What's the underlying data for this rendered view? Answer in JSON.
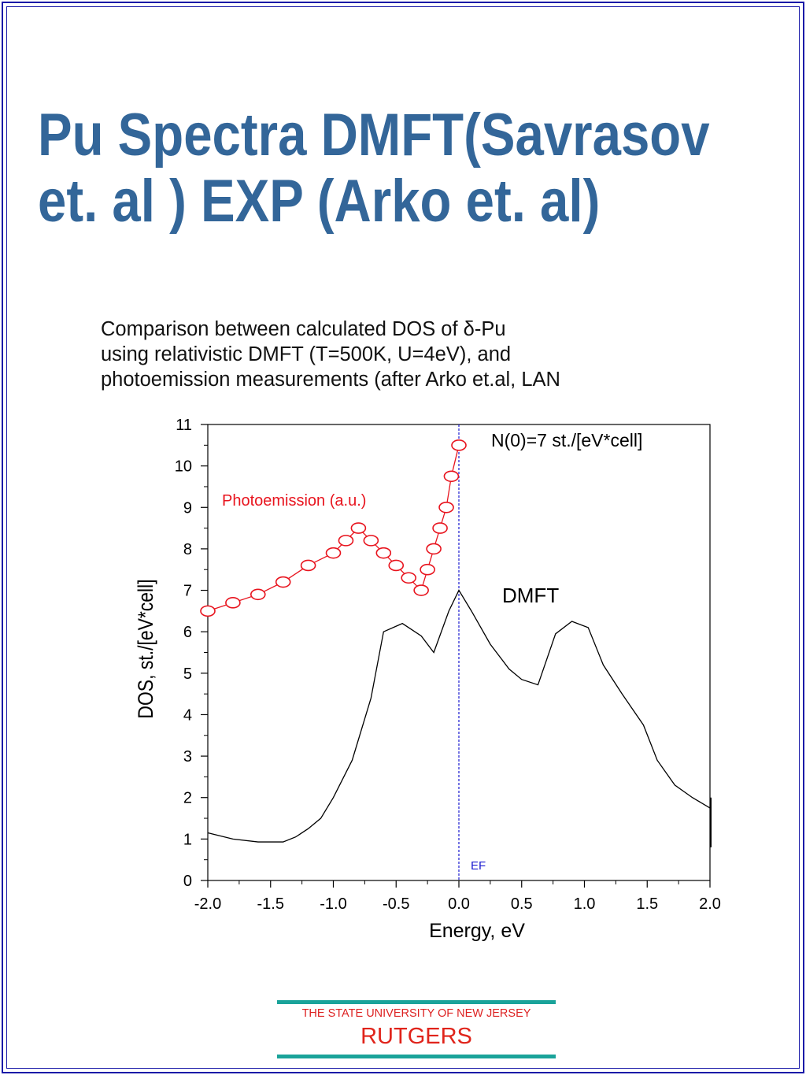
{
  "slide": {
    "title_line1": "Pu Spectra DMFT(Savrasov",
    "title_line2": "et. al ) EXP (Arko et. al)"
  },
  "caption": {
    "line1": "Comparison between calculated DOS of δ-Pu",
    "line2": "using relativistic DMFT (T=500K, U=4eV), and",
    "line3": "photoemission measurements (after Arko et.al, LAN"
  },
  "chart_data": {
    "type": "line",
    "xlabel": "Energy, eV",
    "ylabel": "DOS, st./[eV*cell]",
    "xlim": [
      -2.0,
      2.0
    ],
    "ylim": [
      0,
      11
    ],
    "xticks": [
      "-2.0",
      "-1.5",
      "-1.0",
      "-0.5",
      "0.0",
      "0.5",
      "1.0",
      "1.5",
      "2.0"
    ],
    "yticks": [
      "0",
      "1",
      "2",
      "3",
      "4",
      "5",
      "6",
      "7",
      "8",
      "9",
      "10",
      "11"
    ],
    "grid": false,
    "annotations": {
      "n0": "N(0)=7 st./[eV*cell]",
      "ef": "EF",
      "dmft": "DMFT",
      "photoemission": "Photoemission (a.u.)"
    },
    "ef_line_x": 0.0,
    "colors": {
      "dmft": "#000000",
      "photoemission": "#e8141e",
      "ef": "#1a1ad0"
    },
    "series": [
      {
        "key": "dmft",
        "marker": "none",
        "x": [
          -2.0,
          -1.8,
          -1.6,
          -1.4,
          -1.3,
          -1.2,
          -1.1,
          -1.0,
          -0.85,
          -0.7,
          -0.6,
          -0.45,
          -0.3,
          -0.2,
          -0.08,
          0.0,
          0.1,
          0.25,
          0.4,
          0.5,
          0.63,
          0.77,
          0.9,
          1.03,
          1.15,
          1.3,
          1.47,
          1.58,
          1.72,
          1.86,
          2.0
        ],
        "y": [
          1.15,
          1.0,
          0.93,
          0.93,
          1.05,
          1.25,
          1.5,
          2.0,
          2.9,
          4.4,
          6.0,
          6.2,
          5.9,
          5.5,
          6.5,
          7.0,
          6.5,
          5.7,
          5.1,
          4.85,
          4.72,
          5.95,
          6.25,
          6.1,
          5.2,
          4.5,
          3.75,
          2.9,
          2.3,
          2.0,
          1.75
        ]
      },
      {
        "key": "photoemission",
        "marker": "circle",
        "x": [
          -2.0,
          -1.8,
          -1.6,
          -1.4,
          -1.2,
          -1.0,
          -0.9,
          -0.8,
          -0.7,
          -0.6,
          -0.5,
          -0.4,
          -0.3,
          -0.25,
          -0.2,
          -0.15,
          -0.1,
          -0.06,
          0.0
        ],
        "y": [
          6.5,
          6.7,
          6.9,
          7.2,
          7.6,
          7.9,
          8.2,
          8.5,
          8.2,
          7.9,
          7.6,
          7.3,
          7.0,
          7.5,
          8.0,
          8.5,
          9.0,
          9.75,
          10.5
        ]
      }
    ]
  },
  "footer": {
    "university": "THE STATE UNIVERSITY OF NEW JERSEY",
    "name": "RUTGERS"
  }
}
